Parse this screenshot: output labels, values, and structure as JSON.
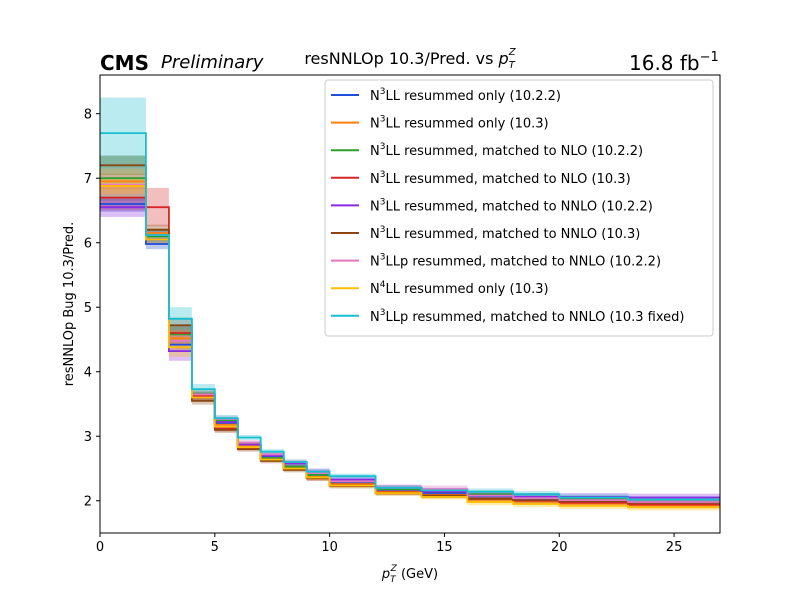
{
  "chart_data": {
    "type": "line",
    "step": true,
    "title": "resNNLOp 10.3/Pred. vs p_T^Z",
    "title_parts": {
      "text": "resNNLOp 10.3/Pred. vs ",
      "sym": "p",
      "sub": "T",
      "sup": "Z"
    },
    "experiment": "CMS",
    "status": "Preliminary",
    "lumi_value": "16.8 fb",
    "lumi_exp": "−1",
    "xlabel": {
      "sym": "p",
      "sub": "T",
      "sup": "Z",
      "unit": " (GeV)"
    },
    "ylabel": "resNNLOp Bug 10.3/Pred.",
    "xlim": [
      0,
      27
    ],
    "ylim": [
      1.5,
      8.6
    ],
    "xticks": [
      "0",
      "5",
      "10",
      "15",
      "20",
      "25"
    ],
    "yticks": [
      "2",
      "3",
      "4",
      "5",
      "6",
      "7",
      "8"
    ],
    "legend_position": "upper right",
    "bin_edges": [
      0,
      2,
      3,
      4,
      5,
      6,
      7,
      8,
      9,
      10,
      12,
      14,
      16,
      18,
      20,
      23,
      27
    ],
    "series": [
      {
        "name": "N3LL resummed only (10.2.2)",
        "prefix": "N",
        "sup": "3",
        "rest": "LL resummed only (10.2.2)",
        "color": "#1f4fd8",
        "values": [
          6.6,
          5.98,
          4.42,
          3.62,
          3.2,
          2.86,
          2.68,
          2.53,
          2.4,
          2.27,
          2.17,
          2.12,
          2.07,
          2.03,
          2.0,
          1.97
        ],
        "unc": [
          0.12,
          0.08,
          0.1,
          0.06,
          0.05,
          0.04,
          0.04,
          0.04,
          0.04,
          0.04,
          0.04,
          0.04,
          0.05,
          0.05,
          0.05,
          0.05
        ]
      },
      {
        "name": "N3LL resummed only (10.3)",
        "prefix": "N",
        "sup": "3",
        "rest": "LL resummed only (10.3)",
        "color": "#ff7f0e",
        "values": [
          6.95,
          6.15,
          4.52,
          3.64,
          3.18,
          2.85,
          2.66,
          2.52,
          2.37,
          2.26,
          2.14,
          2.09,
          2.02,
          1.99,
          1.96,
          1.93
        ],
        "unc": [
          0.12,
          0.08,
          0.1,
          0.06,
          0.05,
          0.04,
          0.04,
          0.04,
          0.04,
          0.04,
          0.04,
          0.04,
          0.05,
          0.05,
          0.05,
          0.05
        ]
      },
      {
        "name": "N3LL resummed, matched to NLO (10.2.2)",
        "prefix": "N",
        "sup": "3",
        "rest": "LL resummed, matched to NLO (10.2.2)",
        "color": "#2ca02c",
        "values": [
          7.0,
          6.1,
          4.58,
          3.66,
          3.24,
          2.88,
          2.66,
          2.53,
          2.4,
          2.3,
          2.18,
          2.14,
          2.1,
          2.06,
          2.02,
          1.98
        ],
        "unc": [
          0.35,
          0.1,
          0.15,
          0.06,
          0.05,
          0.04,
          0.04,
          0.04,
          0.04,
          0.04,
          0.04,
          0.04,
          0.06,
          0.06,
          0.06,
          0.06
        ]
      },
      {
        "name": "N3LL resummed, matched to NLO (10.3)",
        "prefix": "N",
        "sup": "3",
        "rest": "LL resummed, matched to NLO (10.3)",
        "color": "#d62728",
        "values": [
          6.7,
          6.55,
          4.6,
          3.62,
          3.12,
          2.82,
          2.64,
          2.5,
          2.35,
          2.25,
          2.13,
          2.08,
          2.03,
          2.0,
          1.97,
          1.94
        ],
        "unc": [
          0.2,
          0.3,
          0.12,
          0.06,
          0.05,
          0.04,
          0.04,
          0.04,
          0.04,
          0.04,
          0.04,
          0.04,
          0.05,
          0.05,
          0.05,
          0.05
        ]
      },
      {
        "name": "N3LL resummed, matched to NNLO (10.2.2)",
        "prefix": "N",
        "sup": "3",
        "rest": "LL resummed, matched to NNLO (10.2.2)",
        "color": "#8a2be2",
        "values": [
          6.55,
          6.05,
          4.32,
          3.6,
          3.22,
          2.87,
          2.7,
          2.58,
          2.45,
          2.33,
          2.2,
          2.14,
          2.08,
          2.06,
          2.06,
          2.05
        ],
        "unc": [
          0.15,
          0.08,
          0.15,
          0.06,
          0.05,
          0.04,
          0.04,
          0.04,
          0.05,
          0.05,
          0.05,
          0.06,
          0.06,
          0.06,
          0.06,
          0.06
        ]
      },
      {
        "name": "N3LL resummed, matched to NNLO (10.3)",
        "prefix": "N",
        "sup": "3",
        "rest": "LL resummed, matched to NNLO (10.3)",
        "color": "#8b4513",
        "values": [
          7.2,
          6.2,
          4.72,
          3.55,
          3.1,
          2.8,
          2.62,
          2.48,
          2.35,
          2.23,
          2.12,
          2.08,
          2.03,
          2.01,
          1.99,
          1.97
        ],
        "unc": [
          0.15,
          0.08,
          0.12,
          0.06,
          0.05,
          0.04,
          0.04,
          0.04,
          0.04,
          0.04,
          0.04,
          0.04,
          0.05,
          0.05,
          0.05,
          0.05
        ]
      },
      {
        "name": "N3LLp resummed, matched to NNLO (10.2.2)",
        "prefix": "N",
        "sup": "3",
        "rest": "LLp resummed, matched to NNLO (10.2.2)",
        "color": "#e377c2",
        "values": [
          6.9,
          6.12,
          4.48,
          3.65,
          3.27,
          2.9,
          2.72,
          2.6,
          2.43,
          2.3,
          2.2,
          2.18,
          2.08,
          2.04,
          2.01,
          1.98
        ],
        "unc": [
          0.15,
          0.08,
          0.12,
          0.06,
          0.05,
          0.04,
          0.04,
          0.04,
          0.04,
          0.04,
          0.04,
          0.06,
          0.05,
          0.05,
          0.05,
          0.05
        ]
      },
      {
        "name": "N4LL resummed only (10.3)",
        "prefix": "N",
        "sup": "4",
        "rest": "LL resummed only (10.3)",
        "color": "#ffbf00",
        "values": [
          6.88,
          6.05,
          4.38,
          3.6,
          3.15,
          2.83,
          2.64,
          2.5,
          2.36,
          2.24,
          2.12,
          2.06,
          1.98,
          1.95,
          1.92,
          1.9
        ],
        "unc": [
          0.12,
          0.08,
          0.15,
          0.06,
          0.05,
          0.04,
          0.04,
          0.04,
          0.04,
          0.04,
          0.04,
          0.04,
          0.05,
          0.05,
          0.05,
          0.05
        ]
      },
      {
        "name": "N3LLp resummed, matched to NNLO (10.3 fixed)",
        "prefix": "N",
        "sup": "3",
        "rest": "LLp resummed, matched to NNLO (10.3 fixed)",
        "color": "#17becf",
        "values": [
          7.7,
          6.12,
          4.82,
          3.73,
          3.28,
          2.98,
          2.76,
          2.6,
          2.45,
          2.38,
          2.2,
          2.16,
          2.14,
          2.1,
          2.05,
          2.02
        ],
        "unc": [
          0.55,
          0.1,
          0.18,
          0.08,
          0.05,
          0.04,
          0.04,
          0.04,
          0.04,
          0.04,
          0.04,
          0.04,
          0.05,
          0.05,
          0.05,
          0.05
        ]
      }
    ]
  }
}
